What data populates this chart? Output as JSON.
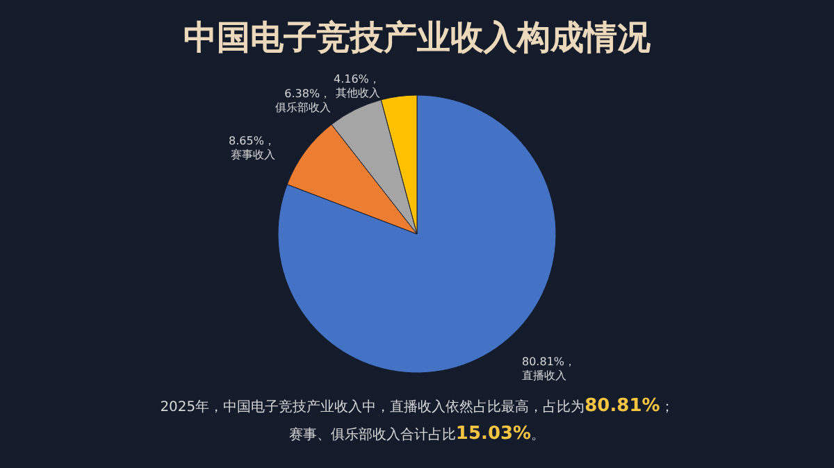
{
  "chart_data": {
    "type": "pie",
    "title": "中国电子竞技产业收入构成情况",
    "categories": [
      "直播收入",
      "赛事收入",
      "俱乐部收入",
      "其他收入"
    ],
    "values": [
      80.81,
      8.65,
      6.38,
      4.16
    ],
    "colors": [
      "#4472c4",
      "#ed7d31",
      "#a5a5a5",
      "#ffc000"
    ],
    "value_labels": [
      "80.81%，",
      "8.65%，",
      "6.38%，",
      "4.16%，"
    ],
    "annotations": [
      "2025年，中国电子竞技产业收入中，直播收入依然占比最高，占比为80.81%；",
      "赛事、俱乐部收入合计占比15.03%。"
    ]
  }
}
